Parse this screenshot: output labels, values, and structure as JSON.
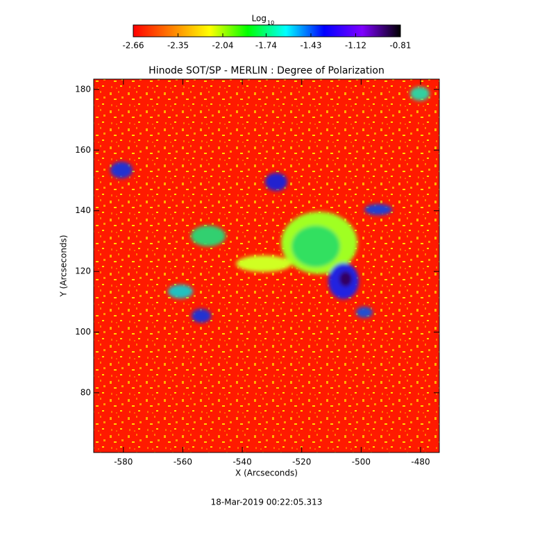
{
  "chart_data": {
    "type": "image",
    "title": "Hinode SOT/SP - MERLIN : Degree of Polarization",
    "xlabel": "X (Arcseconds)",
    "ylabel": "Y (Arcseconds)",
    "xlim": [
      -590,
      -473.7
    ],
    "xticks": [
      -580,
      -560,
      -540,
      -520,
      -500,
      -480
    ],
    "ylim": [
      60.3,
      183.4
    ],
    "yticks": [
      80,
      100,
      120,
      140,
      160,
      180
    ],
    "colorbar": {
      "label": "Log",
      "label_subscript": "10",
      "lim": [
        -2.66,
        -0.81
      ],
      "ticks": [
        -2.66,
        -2.35,
        -2.04,
        -1.74,
        -1.43,
        -1.12,
        -0.81
      ],
      "colormap": [
        "#ff0000",
        "#ff7f00",
        "#ffff00",
        "#00ff00",
        "#00ffff",
        "#0000ff",
        "#7f00ff",
        "#000000"
      ]
    },
    "footer": "18-Mar-2019 00:22:05.313"
  }
}
